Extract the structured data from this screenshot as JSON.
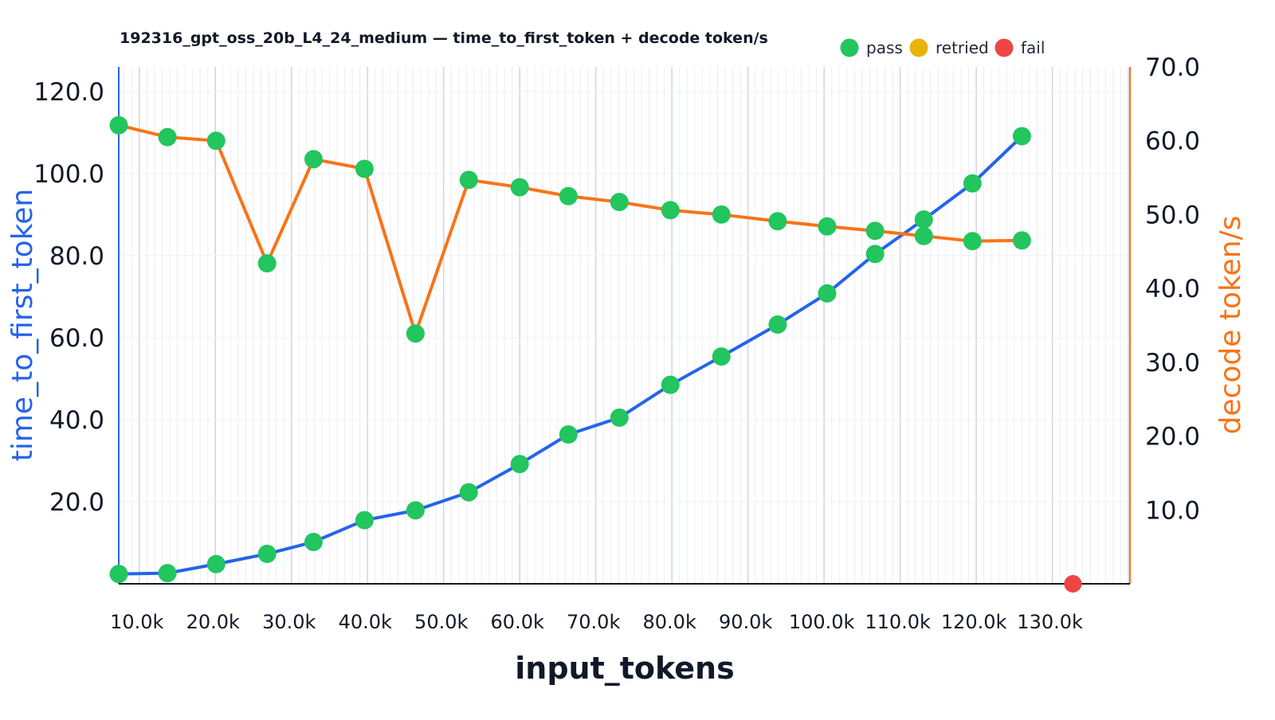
{
  "chart_data": {
    "type": "line",
    "title": "192316_gpt_oss_20b_L4_24_medium — time_to_first_token + decode token/s",
    "xlabel": "input_tokens",
    "ylabel_left": "time_to_first_token",
    "ylabel_right": "decode token/s",
    "xlim": [
      7.3,
      140.2
    ],
    "ylim_left": [
      0,
      126
    ],
    "ylim_right": [
      0,
      70
    ],
    "x_ticks": [
      "10.0k",
      "20.0k",
      "30.0k",
      "40.0k",
      "50.0k",
      "60.0k",
      "70.0k",
      "80.0k",
      "90.0k",
      "100.0k",
      "110.0k",
      "120.0k",
      "130.0k"
    ],
    "x_tick_values": [
      10,
      20,
      30,
      40,
      50,
      60,
      70,
      80,
      90,
      100,
      110,
      120,
      130
    ],
    "y_left_ticks": [
      "20.0",
      "40.0",
      "60.0",
      "80.0",
      "100.0",
      "120.0"
    ],
    "y_left_tick_values": [
      20,
      40,
      60,
      80,
      100,
      120
    ],
    "y_right_ticks": [
      "10.0",
      "20.0",
      "30.0",
      "40.0",
      "50.0",
      "60.0",
      "70.0"
    ],
    "y_right_tick_values": [
      10,
      20,
      30,
      40,
      50,
      60,
      70
    ],
    "grid": true,
    "x_unit": "k tokens",
    "x": [
      7.3,
      13.7,
      20.1,
      26.8,
      32.9,
      39.6,
      46.3,
      53.3,
      60.0,
      66.4,
      73.1,
      79.8,
      86.5,
      93.9,
      100.4,
      106.7,
      113.1,
      119.5,
      126.0
    ],
    "series": [
      {
        "axis": "left",
        "color": "#2563eb",
        "values": [
          2.4,
          2.6,
          4.8,
          7.3,
          10.2,
          15.5,
          17.9,
          22.3,
          29.2,
          36.4,
          40.5,
          48.5,
          55.4,
          63.2,
          70.8,
          80.4,
          88.8,
          97.6,
          109.1
        ]
      },
      {
        "axis": "right",
        "color": "#f97316",
        "values": [
          62.1,
          60.5,
          60.0,
          43.4,
          57.5,
          56.2,
          33.9,
          54.7,
          53.7,
          52.5,
          51.7,
          50.6,
          50.0,
          49.1,
          48.4,
          47.8,
          47.1,
          46.4,
          46.5
        ]
      }
    ],
    "fail_points": [
      {
        "x": 132.7,
        "value": 0
      }
    ],
    "legend": {
      "placement": "top-right",
      "items": [
        {
          "label": "pass",
          "color": "#22c55e"
        },
        {
          "label": "retried",
          "color": "#eab308"
        },
        {
          "label": "fail",
          "color": "#ef4444"
        }
      ]
    }
  }
}
